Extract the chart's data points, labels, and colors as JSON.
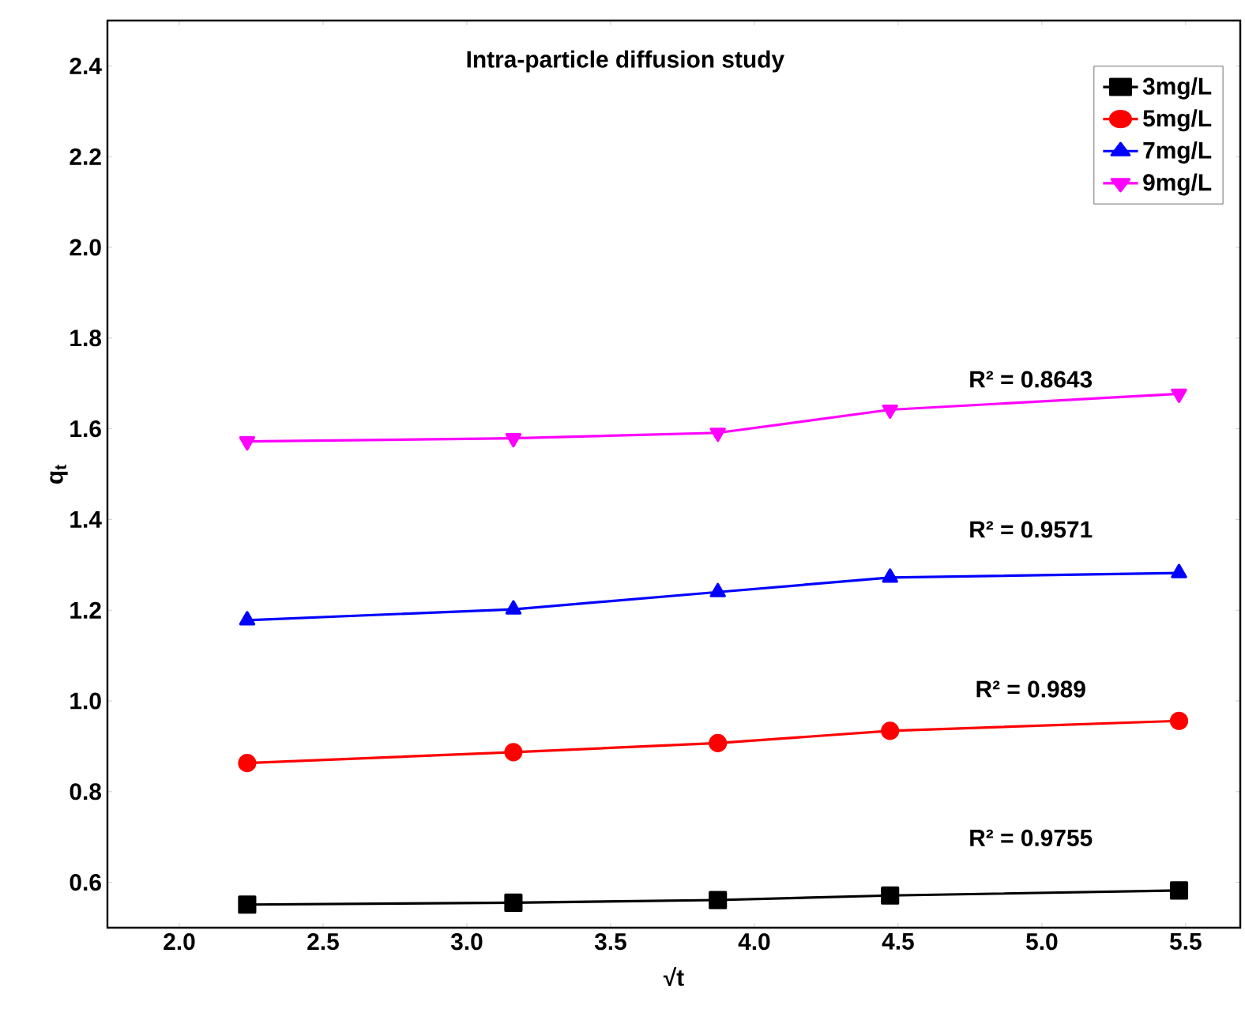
{
  "chart_data": {
    "type": "line",
    "title": "Intra-particle diffusion study",
    "xlabel": "√t",
    "ylabel": "q$_{t}$",
    "x": [
      2.236,
      3.162,
      3.873,
      4.472,
      5.477
    ],
    "series": [
      {
        "name": "3mg/L",
        "color": "#000000",
        "marker": "square",
        "values": [
          0.551,
          0.555,
          0.561,
          0.571,
          0.582
        ]
      },
      {
        "name": "5mg/L",
        "color": "#ff0000",
        "marker": "circle",
        "values": [
          0.863,
          0.887,
          0.907,
          0.934,
          0.956
        ]
      },
      {
        "name": "7mg/L",
        "color": "#0000ff",
        "marker": "triangle",
        "values": [
          1.178,
          1.202,
          1.24,
          1.272,
          1.282
        ]
      },
      {
        "name": "9mg/L",
        "color": "#ff00ff",
        "marker": "triangle-down",
        "values": [
          1.572,
          1.579,
          1.591,
          1.642,
          1.677
        ]
      }
    ],
    "xlim": [
      1.75,
      5.69
    ],
    "ylim": [
      0.5,
      2.5
    ],
    "xticks": [
      {
        "value": 2,
        "label": "2.0"
      },
      2.5,
      {
        "value": 3,
        "label": "3.0"
      },
      3.5,
      {
        "value": 4,
        "label": "4.0"
      },
      4.5,
      {
        "value": 5,
        "label": "5.0"
      },
      5.5
    ],
    "yticks": [
      0.6,
      0.8,
      {
        "value": 1,
        "label": "1.0"
      },
      1.2,
      1.4,
      1.6,
      1.8,
      {
        "value": 2,
        "label": "2.0"
      },
      2.2,
      2.4
    ],
    "annotations": [
      "R² = 0.8643",
      "R² = 0.9571",
      "R² = 0.989",
      "R² = 0.9755"
    ],
    "legend": "top right",
    "grid": false,
    "line_style": "solid"
  }
}
